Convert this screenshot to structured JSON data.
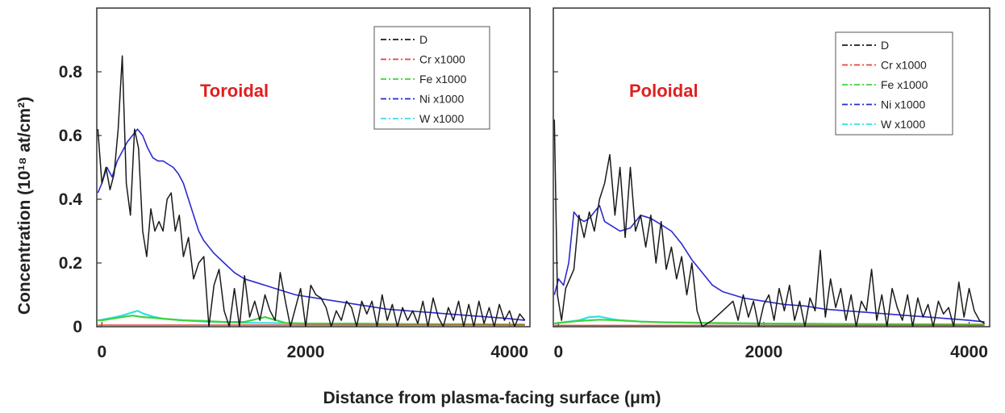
{
  "figure": {
    "ylabel": "Concentration (10¹⁸ at/cm²)",
    "xlabel": "Distance from plasma-facing surface (μm)"
  },
  "colors": {
    "D": "#1a1a1a",
    "Cr x1000": "#e8433a",
    "Fe x1000": "#3fd23f",
    "Ni x1000": "#2a2ad0",
    "W x1000": "#30e0e8",
    "annotation": "#e02020"
  },
  "chart_data": [
    {
      "type": "line",
      "title": "",
      "annotation": "Toroidal",
      "xlabel": "Distance from plasma-facing surface (μm)",
      "ylabel": "Concentration (10¹⁸ at/cm²)",
      "xlim": [
        -50,
        4200
      ],
      "ylim": [
        0,
        1.0
      ],
      "xticks": [
        0,
        2000,
        4000
      ],
      "xtick_labels": [
        "0",
        "2000",
        "4000"
      ],
      "yticks": [
        0,
        0.2,
        0.4,
        0.6,
        0.8
      ],
      "ytick_labels": [
        "0",
        "0.2",
        "0.4",
        "0.6",
        "0.8"
      ],
      "grid": false,
      "legend": "top-right",
      "series": [
        {
          "name": "D",
          "x": [
            -40,
            0,
            40,
            80,
            120,
            160,
            200,
            240,
            280,
            320,
            360,
            400,
            440,
            480,
            520,
            560,
            600,
            640,
            680,
            720,
            760,
            800,
            850,
            900,
            950,
            1000,
            1050,
            1100,
            1150,
            1200,
            1250,
            1300,
            1350,
            1400,
            1450,
            1500,
            1550,
            1600,
            1650,
            1700,
            1750,
            1800,
            1850,
            1900,
            1950,
            2000,
            2050,
            2100,
            2150,
            2200,
            2250,
            2300,
            2350,
            2400,
            2450,
            2500,
            2550,
            2600,
            2650,
            2700,
            2750,
            2800,
            2850,
            2900,
            2950,
            3000,
            3050,
            3100,
            3150,
            3200,
            3250,
            3300,
            3350,
            3400,
            3450,
            3500,
            3550,
            3600,
            3650,
            3700,
            3750,
            3800,
            3850,
            3900,
            3950,
            4000,
            4050,
            4100,
            4150
          ],
          "values": [
            0.62,
            0.45,
            0.5,
            0.43,
            0.48,
            0.62,
            0.85,
            0.45,
            0.35,
            0.62,
            0.56,
            0.3,
            0.22,
            0.37,
            0.3,
            0.33,
            0.3,
            0.4,
            0.42,
            0.3,
            0.35,
            0.22,
            0.28,
            0.15,
            0.2,
            0.22,
            0.0,
            0.13,
            0.18,
            0.05,
            0.0,
            0.12,
            0.0,
            0.16,
            0.03,
            0.08,
            0.02,
            0.1,
            0.05,
            0.02,
            0.17,
            0.08,
            0.0,
            0.06,
            0.12,
            0.0,
            0.13,
            0.1,
            0.09,
            0.06,
            0.0,
            0.05,
            0.02,
            0.08,
            0.06,
            0.0,
            0.08,
            0.04,
            0.08,
            0.0,
            0.1,
            0.02,
            0.07,
            0.0,
            0.06,
            0.02,
            0.05,
            0.01,
            0.08,
            0.0,
            0.09,
            0.03,
            0.0,
            0.06,
            0.02,
            0.08,
            0.0,
            0.07,
            0.0,
            0.08,
            0.01,
            0.06,
            0.0,
            0.07,
            0.02,
            0.05,
            0.0,
            0.04,
            0.02
          ]
        },
        {
          "name": "Cr x1000",
          "x": [
            -40,
            4150
          ],
          "values": [
            0.005,
            0.005
          ]
        },
        {
          "name": "Fe x1000",
          "x": [
            -40,
            0,
            100,
            200,
            300,
            400,
            500,
            600,
            800,
            1000,
            1200,
            1400,
            1600,
            1800,
            2000,
            2500,
            3000,
            3500,
            4000,
            4150
          ],
          "values": [
            0.02,
            0.02,
            0.025,
            0.03,
            0.035,
            0.03,
            0.028,
            0.025,
            0.02,
            0.018,
            0.015,
            0.015,
            0.03,
            0.012,
            0.01,
            0.01,
            0.008,
            0.008,
            0.007,
            0.007
          ]
        },
        {
          "name": "Ni x1000",
          "x": [
            -40,
            0,
            50,
            100,
            150,
            200,
            250,
            300,
            350,
            400,
            450,
            500,
            550,
            600,
            650,
            700,
            750,
            800,
            850,
            900,
            950,
            1000,
            1100,
            1200,
            1300,
            1400,
            1500,
            1600,
            1700,
            1800,
            1900,
            2000,
            2200,
            2400,
            2600,
            2800,
            3000,
            3200,
            3400,
            3600,
            3800,
            4000,
            4150
          ],
          "values": [
            0.42,
            0.45,
            0.5,
            0.47,
            0.52,
            0.55,
            0.58,
            0.6,
            0.62,
            0.6,
            0.56,
            0.53,
            0.52,
            0.52,
            0.51,
            0.5,
            0.48,
            0.45,
            0.4,
            0.35,
            0.3,
            0.27,
            0.23,
            0.2,
            0.17,
            0.15,
            0.14,
            0.13,
            0.12,
            0.11,
            0.1,
            0.095,
            0.085,
            0.075,
            0.065,
            0.055,
            0.05,
            0.045,
            0.04,
            0.035,
            0.03,
            0.025,
            0.02
          ]
        },
        {
          "name": "W x1000",
          "x": [
            -40,
            0,
            100,
            200,
            300,
            350,
            400,
            500,
            600,
            800,
            1000,
            1200,
            1400,
            1600,
            2000,
            2500,
            3000,
            3500,
            4000,
            4150
          ],
          "values": [
            0.02,
            0.022,
            0.028,
            0.035,
            0.045,
            0.05,
            0.042,
            0.032,
            0.025,
            0.02,
            0.016,
            0.014,
            0.012,
            0.012,
            0.01,
            0.009,
            0.008,
            0.007,
            0.006,
            0.006
          ]
        }
      ]
    },
    {
      "type": "line",
      "title": "",
      "annotation": "Poloidal",
      "xlabel": "Distance from plasma-facing surface (μm)",
      "ylabel": "",
      "xlim": [
        -50,
        4200
      ],
      "ylim": [
        0,
        1.0
      ],
      "xticks": [
        0,
        2000,
        4000
      ],
      "xtick_labels": [
        "0",
        "2000",
        "4000"
      ],
      "yticks": [
        0,
        0.2,
        0.4,
        0.6,
        0.8
      ],
      "ytick_labels": [],
      "grid": false,
      "legend": "top-right",
      "series": [
        {
          "name": "D",
          "x": [
            -40,
            -10,
            30,
            70,
            110,
            150,
            200,
            250,
            300,
            350,
            400,
            450,
            500,
            550,
            600,
            650,
            700,
            750,
            800,
            850,
            900,
            950,
            1000,
            1050,
            1100,
            1150,
            1200,
            1250,
            1300,
            1350,
            1400,
            1500,
            1600,
            1700,
            1750,
            1800,
            1850,
            1900,
            1950,
            2000,
            2050,
            2100,
            2150,
            2200,
            2250,
            2300,
            2350,
            2400,
            2450,
            2500,
            2550,
            2600,
            2650,
            2700,
            2750,
            2800,
            2850,
            2900,
            2950,
            3000,
            3050,
            3100,
            3150,
            3200,
            3250,
            3300,
            3350,
            3400,
            3450,
            3500,
            3550,
            3600,
            3650,
            3700,
            3750,
            3800,
            3850,
            3900,
            3950,
            4000,
            4050,
            4100,
            4150
          ],
          "values": [
            0.65,
            0.1,
            0.02,
            0.12,
            0.15,
            0.18,
            0.35,
            0.28,
            0.36,
            0.3,
            0.4,
            0.45,
            0.54,
            0.35,
            0.5,
            0.28,
            0.5,
            0.3,
            0.35,
            0.25,
            0.35,
            0.2,
            0.33,
            0.18,
            0.25,
            0.15,
            0.22,
            0.1,
            0.2,
            0.05,
            0.0,
            0.02,
            0.05,
            0.08,
            0.02,
            0.1,
            0.03,
            0.08,
            0.0,
            0.07,
            0.1,
            0.02,
            0.12,
            0.05,
            0.13,
            0.02,
            0.08,
            0.0,
            0.09,
            0.05,
            0.24,
            0.03,
            0.15,
            0.06,
            0.12,
            0.02,
            0.1,
            0.0,
            0.08,
            0.05,
            0.18,
            0.02,
            0.1,
            0.0,
            0.12,
            0.06,
            0.02,
            0.1,
            0.0,
            0.09,
            0.03,
            0.07,
            0.0,
            0.08,
            0.04,
            0.06,
            0.0,
            0.14,
            0.03,
            0.12,
            0.05,
            0.02,
            0.01
          ]
        },
        {
          "name": "Cr x1000",
          "x": [
            -40,
            4150
          ],
          "values": [
            0.004,
            0.004
          ]
        },
        {
          "name": "Fe x1000",
          "x": [
            -40,
            0,
            200,
            400,
            600,
            800,
            1000,
            1500,
            2000,
            3000,
            4000,
            4150
          ],
          "values": [
            0.01,
            0.012,
            0.018,
            0.022,
            0.02,
            0.016,
            0.014,
            0.012,
            0.01,
            0.008,
            0.007,
            0.007
          ]
        },
        {
          "name": "Ni x1000",
          "x": [
            -40,
            0,
            50,
            100,
            150,
            200,
            250,
            300,
            350,
            400,
            450,
            500,
            600,
            700,
            800,
            900,
            1000,
            1100,
            1200,
            1300,
            1400,
            1500,
            1600,
            1700,
            1800,
            2000,
            2200,
            2400,
            2600,
            2800,
            3000,
            3200,
            3400,
            3600,
            3800,
            4000,
            4150
          ],
          "values": [
            0.1,
            0.15,
            0.13,
            0.2,
            0.36,
            0.34,
            0.33,
            0.34,
            0.36,
            0.38,
            0.33,
            0.32,
            0.3,
            0.31,
            0.35,
            0.34,
            0.32,
            0.3,
            0.26,
            0.21,
            0.17,
            0.13,
            0.11,
            0.1,
            0.09,
            0.08,
            0.07,
            0.065,
            0.055,
            0.05,
            0.045,
            0.04,
            0.035,
            0.03,
            0.025,
            0.02,
            0.015
          ]
        },
        {
          "name": "W x1000",
          "x": [
            -40,
            0,
            200,
            300,
            400,
            500,
            600,
            800,
            1000,
            1500,
            2000,
            3000,
            4000,
            4150
          ],
          "values": [
            0.01,
            0.012,
            0.02,
            0.03,
            0.032,
            0.025,
            0.02,
            0.016,
            0.014,
            0.011,
            0.01,
            0.008,
            0.006,
            0.006
          ]
        }
      ]
    }
  ]
}
